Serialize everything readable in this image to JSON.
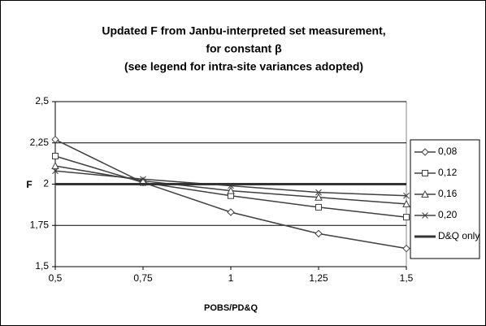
{
  "chart_data": {
    "type": "line",
    "title": [
      "Updated F from Janbu-interpreted set measurement,",
      "for constant β",
      "(see legend for intra-site variances adopted)"
    ],
    "xlabel": "POBS/PD&Q",
    "ylabel": "F",
    "x": [
      0.5,
      0.75,
      1,
      1.25,
      1.5
    ],
    "xlim": [
      0.5,
      1.5
    ],
    "xticks": [
      {
        "value": 0.5,
        "label": "0,5"
      },
      {
        "value": 0.75,
        "label": "0,75"
      },
      1,
      {
        "value": 1.25,
        "label": "1,25"
      },
      {
        "value": 1.5,
        "label": "1,5"
      }
    ],
    "ylim": [
      1.5,
      2.5
    ],
    "yticks": [
      {
        "value": 1.5,
        "label": "1,5"
      },
      {
        "value": 1.75,
        "label": "1,75"
      },
      2,
      {
        "value": 2.25,
        "label": "2,25"
      },
      {
        "value": 2.5,
        "label": "2,5"
      }
    ],
    "grid": true,
    "legend": "right",
    "series": [
      {
        "name": "0,08",
        "color": "#404040",
        "marker": "diamond",
        "values": [
          2.27,
          2.01,
          1.83,
          1.7,
          1.61
        ]
      },
      {
        "name": "0,12",
        "color": "#404040",
        "marker": "square",
        "values": [
          2.17,
          2.01,
          1.93,
          1.86,
          1.8
        ]
      },
      {
        "name": "0,16",
        "color": "#404040",
        "marker": "triangle",
        "values": [
          2.11,
          2.02,
          1.96,
          1.92,
          1.88
        ]
      },
      {
        "name": "0,20",
        "color": "#404040",
        "marker": "x",
        "values": [
          2.08,
          2.03,
          1.99,
          1.95,
          1.93
        ]
      },
      {
        "name": "D&Q only",
        "color": "#333333",
        "marker": "none",
        "values": [
          2,
          2,
          2,
          2,
          2
        ]
      }
    ]
  }
}
